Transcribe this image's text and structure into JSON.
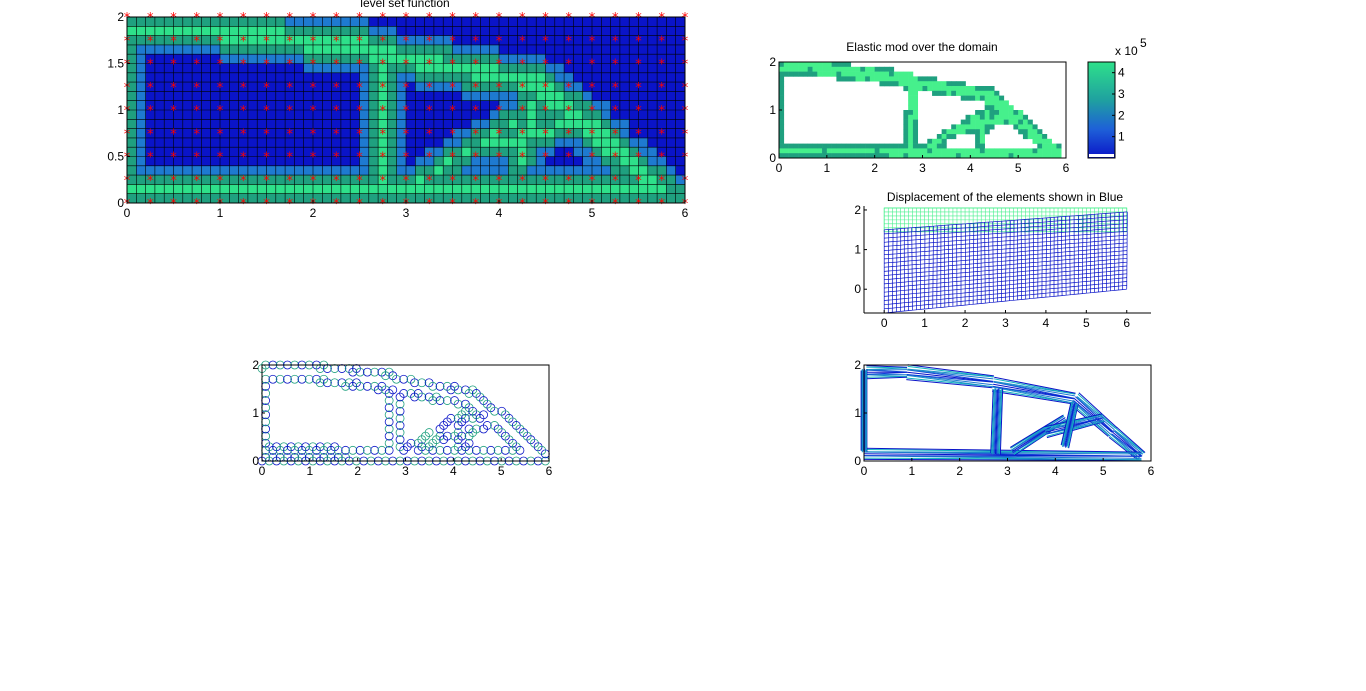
{
  "figure": {
    "colors": {
      "dark_blue": "#0a14c8",
      "mid_blue": "#1e7ad0",
      "teal": "#1fa07f",
      "green": "#2ee08a",
      "light_green": "#46f08c",
      "marker_red": "#ff0000",
      "grid_line": "#000000"
    }
  },
  "chart_data": [
    {
      "id": "level-set",
      "type": "heatmap",
      "title": "level set function",
      "xlim": [
        0,
        6
      ],
      "ylim": [
        0,
        2
      ],
      "xticks": [
        "0",
        "1",
        "2",
        "3",
        "4",
        "5",
        "6"
      ],
      "yticks": [
        "0",
        "0.5",
        "1",
        "1.5",
        "2"
      ],
      "grid": true,
      "markers": "red * nodes on a 25 x 9 lattice",
      "description_values": "approx 60 x 20 cells; green (high) band along top, middle struts and bottom, blue (low) interior voids"
    },
    {
      "id": "elastic-mod",
      "type": "heatmap",
      "title": "Elastic mod over the domain",
      "xlim": [
        0,
        6
      ],
      "ylim": [
        0,
        2
      ],
      "xticks": [
        "0",
        "1",
        "2",
        "3",
        "4",
        "5",
        "6"
      ],
      "yticks": [
        "0",
        "1",
        "2"
      ],
      "colorbar": {
        "ticks": [
          "1",
          "2",
          "3",
          "4"
        ],
        "multiplier": "x 10",
        "exponent": "5",
        "range": [
          0,
          450000
        ]
      }
    },
    {
      "id": "displacement",
      "type": "line",
      "title": "Displacement of the elements shown in Blue",
      "xlim": [
        -0.5,
        6.6
      ],
      "ylim": [
        -0.6,
        2.1
      ],
      "xticks": [
        "0",
        "1",
        "2",
        "3",
        "4",
        "5",
        "6"
      ],
      "yticks": [
        "0",
        "1",
        "2"
      ],
      "series": [
        {
          "style": "undeformed mesh (green)",
          "x": [
            0,
            6
          ],
          "y": [
            1.5,
            2
          ]
        },
        {
          "style": "deformed mesh (blue)",
          "corners": [
            [
              0,
              -0.6
            ],
            [
              6,
              0
            ],
            [
              6,
              1.95
            ],
            [
              0,
              1.5
            ]
          ]
        }
      ]
    },
    {
      "id": "circles",
      "type": "scatter",
      "title": "",
      "xlim": [
        0,
        6
      ],
      "ylim": [
        0,
        2
      ],
      "xticks": [
        "0",
        "1",
        "2",
        "3",
        "4",
        "5",
        "6"
      ],
      "yticks": [
        "0",
        "1",
        "2"
      ],
      "marker": "open circles tracing the structure outline"
    },
    {
      "id": "contours",
      "type": "line",
      "title": "",
      "xlim": [
        0,
        6
      ],
      "ylim": [
        0,
        2
      ],
      "xticks": [
        "0",
        "1",
        "2",
        "3",
        "4",
        "5",
        "6"
      ],
      "yticks": [
        "0",
        "1",
        "2"
      ],
      "marker": "contour lines of the level set boundary"
    }
  ]
}
